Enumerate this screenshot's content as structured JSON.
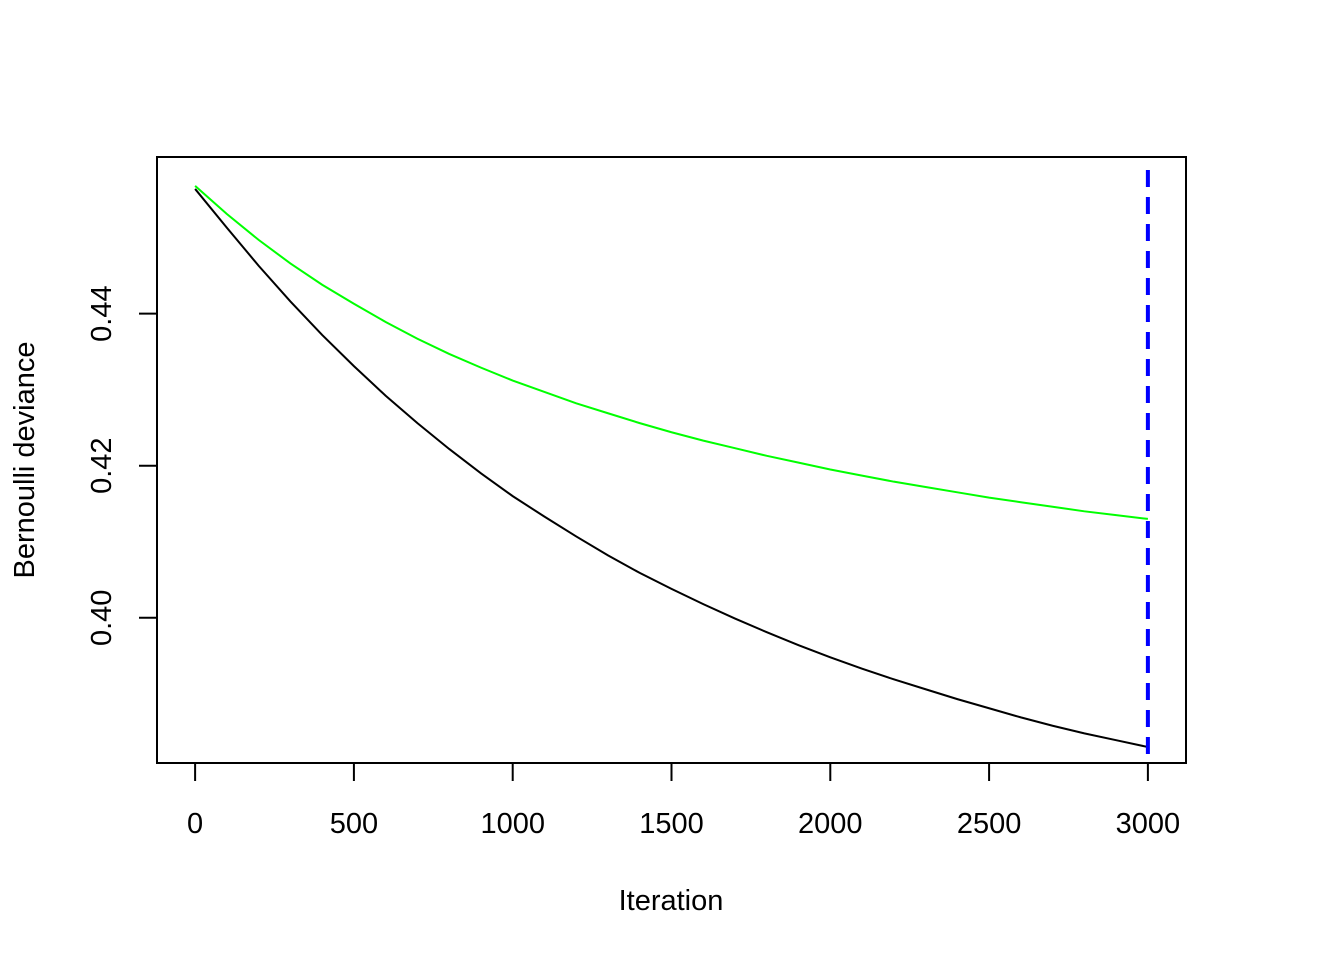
{
  "chart_data": {
    "type": "line",
    "title": "",
    "xlabel": "Iteration",
    "ylabel": "Bernoulli deviance",
    "xlim": [
      -120,
      3120
    ],
    "ylim": [
      0.3809,
      0.4606
    ],
    "xticks": [
      0,
      500,
      1000,
      1500,
      2000,
      2500,
      3000
    ],
    "xtick_labels": [
      "0",
      "500",
      "1000",
      "1500",
      "2000",
      "2500",
      "3000"
    ],
    "yticks": [
      0.4,
      0.42,
      0.44
    ],
    "ytick_labels": [
      "0.40",
      "0.42",
      "0.44"
    ],
    "grid": false,
    "legend": "none",
    "series": [
      {
        "color": "#000000",
        "x": [
          0,
          100,
          200,
          300,
          400,
          500,
          600,
          700,
          800,
          900,
          1000,
          1100,
          1200,
          1300,
          1400,
          1500,
          1600,
          1700,
          1800,
          1900,
          2000,
          2100,
          2200,
          2300,
          2400,
          2500,
          2600,
          2700,
          2800,
          2900,
          3000
        ],
        "y": [
          0.4564,
          0.4513,
          0.4463,
          0.4416,
          0.4372,
          0.4331,
          0.4292,
          0.4256,
          0.4222,
          0.419,
          0.416,
          0.4133,
          0.4107,
          0.4082,
          0.4059,
          0.4038,
          0.4018,
          0.3999,
          0.3981,
          0.3964,
          0.3948,
          0.3933,
          0.3919,
          0.3906,
          0.3893,
          0.3881,
          0.3869,
          0.3858,
          0.3848,
          0.3839,
          0.383
        ]
      },
      {
        "color": "#00ff00",
        "x": [
          0,
          100,
          200,
          300,
          400,
          500,
          600,
          700,
          800,
          900,
          1000,
          1100,
          1200,
          1300,
          1400,
          1500,
          1600,
          1700,
          1800,
          1900,
          2000,
          2100,
          2200,
          2300,
          2400,
          2500,
          2600,
          2700,
          2800,
          2900,
          3000
        ],
        "y": [
          0.4568,
          0.4531,
          0.4497,
          0.4466,
          0.4438,
          0.4413,
          0.4389,
          0.4367,
          0.4347,
          0.4329,
          0.4312,
          0.4297,
          0.4282,
          0.4269,
          0.4256,
          0.4244,
          0.4233,
          0.4223,
          0.4213,
          0.4204,
          0.4195,
          0.4187,
          0.4179,
          0.4172,
          0.4165,
          0.4158,
          0.4152,
          0.4146,
          0.414,
          0.4135,
          0.413
        ]
      }
    ],
    "vline": {
      "x": 3000,
      "color": "#0000ff",
      "style": "dashed"
    }
  }
}
